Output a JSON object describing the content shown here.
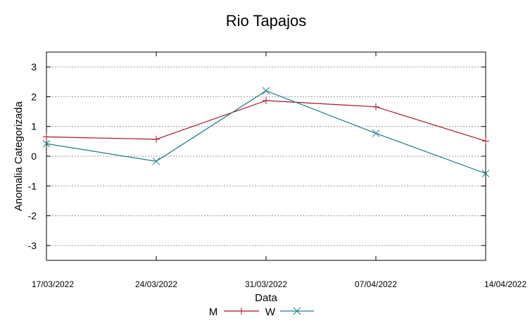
{
  "chart_data": {
    "type": "line",
    "title": "Rio Tapajos",
    "xlabel": "Data",
    "ylabel": "Anomalia Categorizada",
    "categories": [
      "17/03/2022",
      "24/03/2022",
      "31/03/2022",
      "07/04/2022",
      "14/04/2022"
    ],
    "ylim": [
      -3.5,
      3.5
    ],
    "yticks": [
      3,
      2,
      1,
      0,
      -1,
      -2,
      -3
    ],
    "ytick_labels": [
      "3",
      "2",
      "1",
      "0",
      "-1",
      "-2",
      "-3"
    ],
    "grid": true,
    "legend_position": "bottom",
    "series": [
      {
        "name": "M",
        "marker": "+",
        "color": "#a0182a",
        "values": [
          0.65,
          0.57,
          1.87,
          1.66,
          0.51
        ]
      },
      {
        "name": "W",
        "marker": "x",
        "color": "#1a7d85",
        "values": [
          0.42,
          -0.17,
          2.2,
          0.77,
          -0.58
        ]
      }
    ]
  }
}
